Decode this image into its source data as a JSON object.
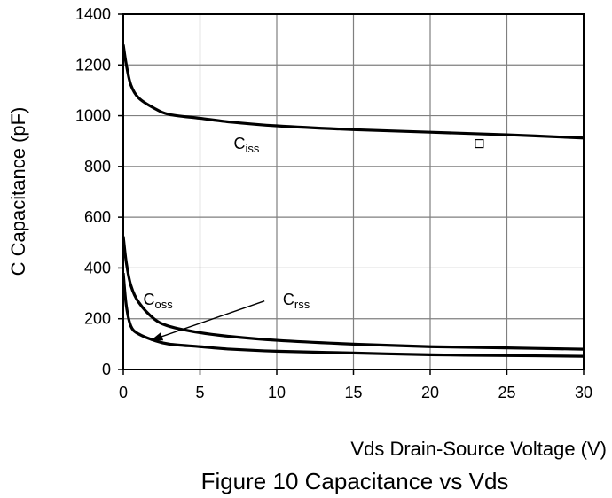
{
  "chart_data": {
    "type": "line",
    "title": "Figure 10 Capacitance vs Vds",
    "xlabel": "Vds Drain-Source Voltage (V)",
    "ylabel": "C Capacitance (pF)",
    "xlim": [
      0,
      30
    ],
    "ylim": [
      0,
      1400
    ],
    "xticks": [
      "0",
      "5",
      "10",
      "15",
      "20",
      "25",
      "30"
    ],
    "yticks": [
      "0",
      "200",
      "400",
      "600",
      "800",
      "1000",
      "1200",
      "1400"
    ],
    "grid": true,
    "legend": "none",
    "series": [
      {
        "name": "Ciss",
        "label_main": "C",
        "label_sub": "iss",
        "x": [
          0,
          0.2,
          0.5,
          1,
          2,
          3,
          5,
          7,
          10,
          15,
          20,
          25,
          30
        ],
        "y": [
          1280,
          1200,
          1120,
          1070,
          1030,
          1005,
          990,
          975,
          960,
          945,
          935,
          925,
          912
        ]
      },
      {
        "name": "Coss",
        "label_main": "C",
        "label_sub": "oss",
        "x": [
          0,
          0.2,
          0.5,
          1,
          2,
          3,
          5,
          7,
          10,
          15,
          20,
          25,
          30
        ],
        "y": [
          525,
          420,
          330,
          265,
          200,
          170,
          145,
          130,
          115,
          100,
          90,
          85,
          80
        ]
      },
      {
        "name": "Crss",
        "label_main": "C",
        "label_sub": "rss",
        "x": [
          0,
          0.2,
          0.5,
          1,
          2,
          3,
          5,
          7,
          10,
          15,
          20,
          25,
          30
        ],
        "y": [
          380,
          250,
          170,
          140,
          115,
          100,
          90,
          80,
          72,
          65,
          58,
          55,
          52
        ]
      }
    ],
    "annotations": [
      {
        "type": "arrow",
        "target_series": "Crss",
        "from": [
          9.2,
          270
        ],
        "to": [
          1.8,
          115
        ]
      },
      {
        "type": "marker",
        "shape": "square",
        "x": 23.2,
        "y": 890
      }
    ]
  }
}
